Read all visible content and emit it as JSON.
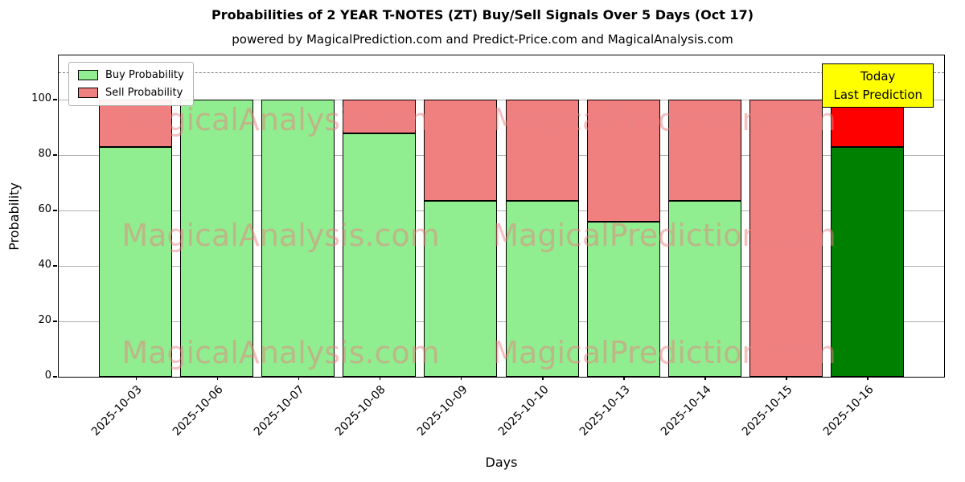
{
  "title": "Probabilities of 2 YEAR T-NOTES (ZT) Buy/Sell Signals Over 5 Days (Oct 17)",
  "subtitle": "powered by MagicalPrediction.com and Predict-Price.com and MagicalAnalysis.com",
  "legend": {
    "buy": "Buy Probability",
    "sell": "Sell Probability"
  },
  "today_box": {
    "line1": "Today",
    "line2": "Last Prediction"
  },
  "watermarks": {
    "left": "MagicalAnalysis.com",
    "right": "MagicalPrediction.com"
  },
  "colors": {
    "buy": "#90ee90",
    "sell": "#f08080",
    "today_buy": "#008000",
    "today_sell": "#ff0000",
    "today_box_bg": "#ffff00",
    "grid": "#b0b0b0",
    "dashed_line": "#7f7f7f",
    "watermark": "rgba(234,128,128,0.5)"
  },
  "chart_data": {
    "type": "bar",
    "stacked": true,
    "title": "Probabilities of 2 YEAR T-NOTES (ZT) Buy/Sell Signals Over 5 Days (Oct 17)",
    "xlabel": "Days",
    "ylabel": "Probability",
    "categories": [
      "2025-10-03",
      "2025-10-06",
      "2025-10-07",
      "2025-10-08",
      "2025-10-09",
      "2025-10-10",
      "2025-10-13",
      "2025-10-14",
      "2025-10-15",
      "2025-10-16"
    ],
    "series": [
      {
        "name": "Buy Probability",
        "values": [
          83,
          100,
          100,
          88,
          63.5,
          63.5,
          56,
          63.5,
          0,
          83
        ]
      },
      {
        "name": "Sell Probability",
        "values": [
          17,
          0,
          0,
          12,
          36.5,
          36.5,
          44,
          36.5,
          100,
          17
        ]
      }
    ],
    "ylim": [
      0,
      116
    ],
    "yticks": [
      0,
      20,
      40,
      60,
      80,
      100
    ],
    "dashed_line_y": 110,
    "today_index": 9,
    "grid": true,
    "legend_position": "upper left"
  }
}
